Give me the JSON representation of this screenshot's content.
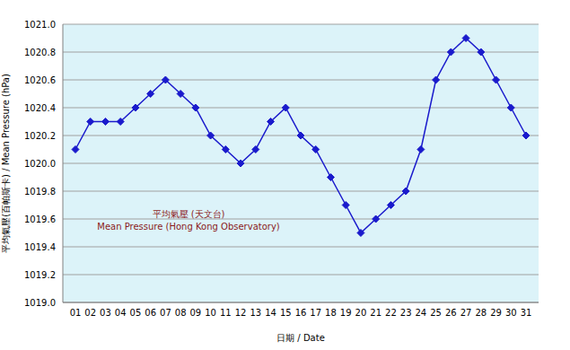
{
  "chart_data": {
    "type": "line",
    "x_label": "日期 / Date",
    "y_label": "平均氣壓(百帕斯卡) / Mean Pressure (hPa)",
    "annotations": [
      "平均氣壓 (天文台)",
      "Mean Pressure (Hong Kong Observatory)"
    ],
    "categories": [
      "01",
      "02",
      "03",
      "04",
      "05",
      "06",
      "07",
      "08",
      "09",
      "10",
      "11",
      "12",
      "13",
      "14",
      "15",
      "16",
      "17",
      "18",
      "19",
      "20",
      "21",
      "22",
      "23",
      "24",
      "25",
      "26",
      "27",
      "28",
      "29",
      "30",
      "31"
    ],
    "values": [
      1020.1,
      1020.3,
      1020.3,
      1020.3,
      1020.4,
      1020.5,
      1020.6,
      1020.5,
      1020.4,
      1020.2,
      1020.1,
      1020.0,
      1020.1,
      1020.3,
      1020.4,
      1020.2,
      1020.1,
      1019.9,
      1019.7,
      1019.5,
      1019.6,
      1019.7,
      1019.8,
      1020.1,
      1020.6,
      1020.8,
      1020.9,
      1020.8,
      1020.6,
      1020.4,
      1020.2
    ],
    "color": "#1a1acc",
    "marker": "diamond",
    "line_style": "solid",
    "grid": true,
    "ylim": [
      1019,
      1021
    ],
    "yticks": [
      {
        "value": 1019,
        "label": "1019.0"
      },
      1019.2,
      1019.4,
      1019.6,
      1019.8,
      {
        "value": 1020,
        "label": "1020.0"
      },
      1020.2,
      1020.4,
      1020.6,
      1020.8,
      {
        "value": 1021,
        "label": "1021.0"
      }
    ]
  }
}
